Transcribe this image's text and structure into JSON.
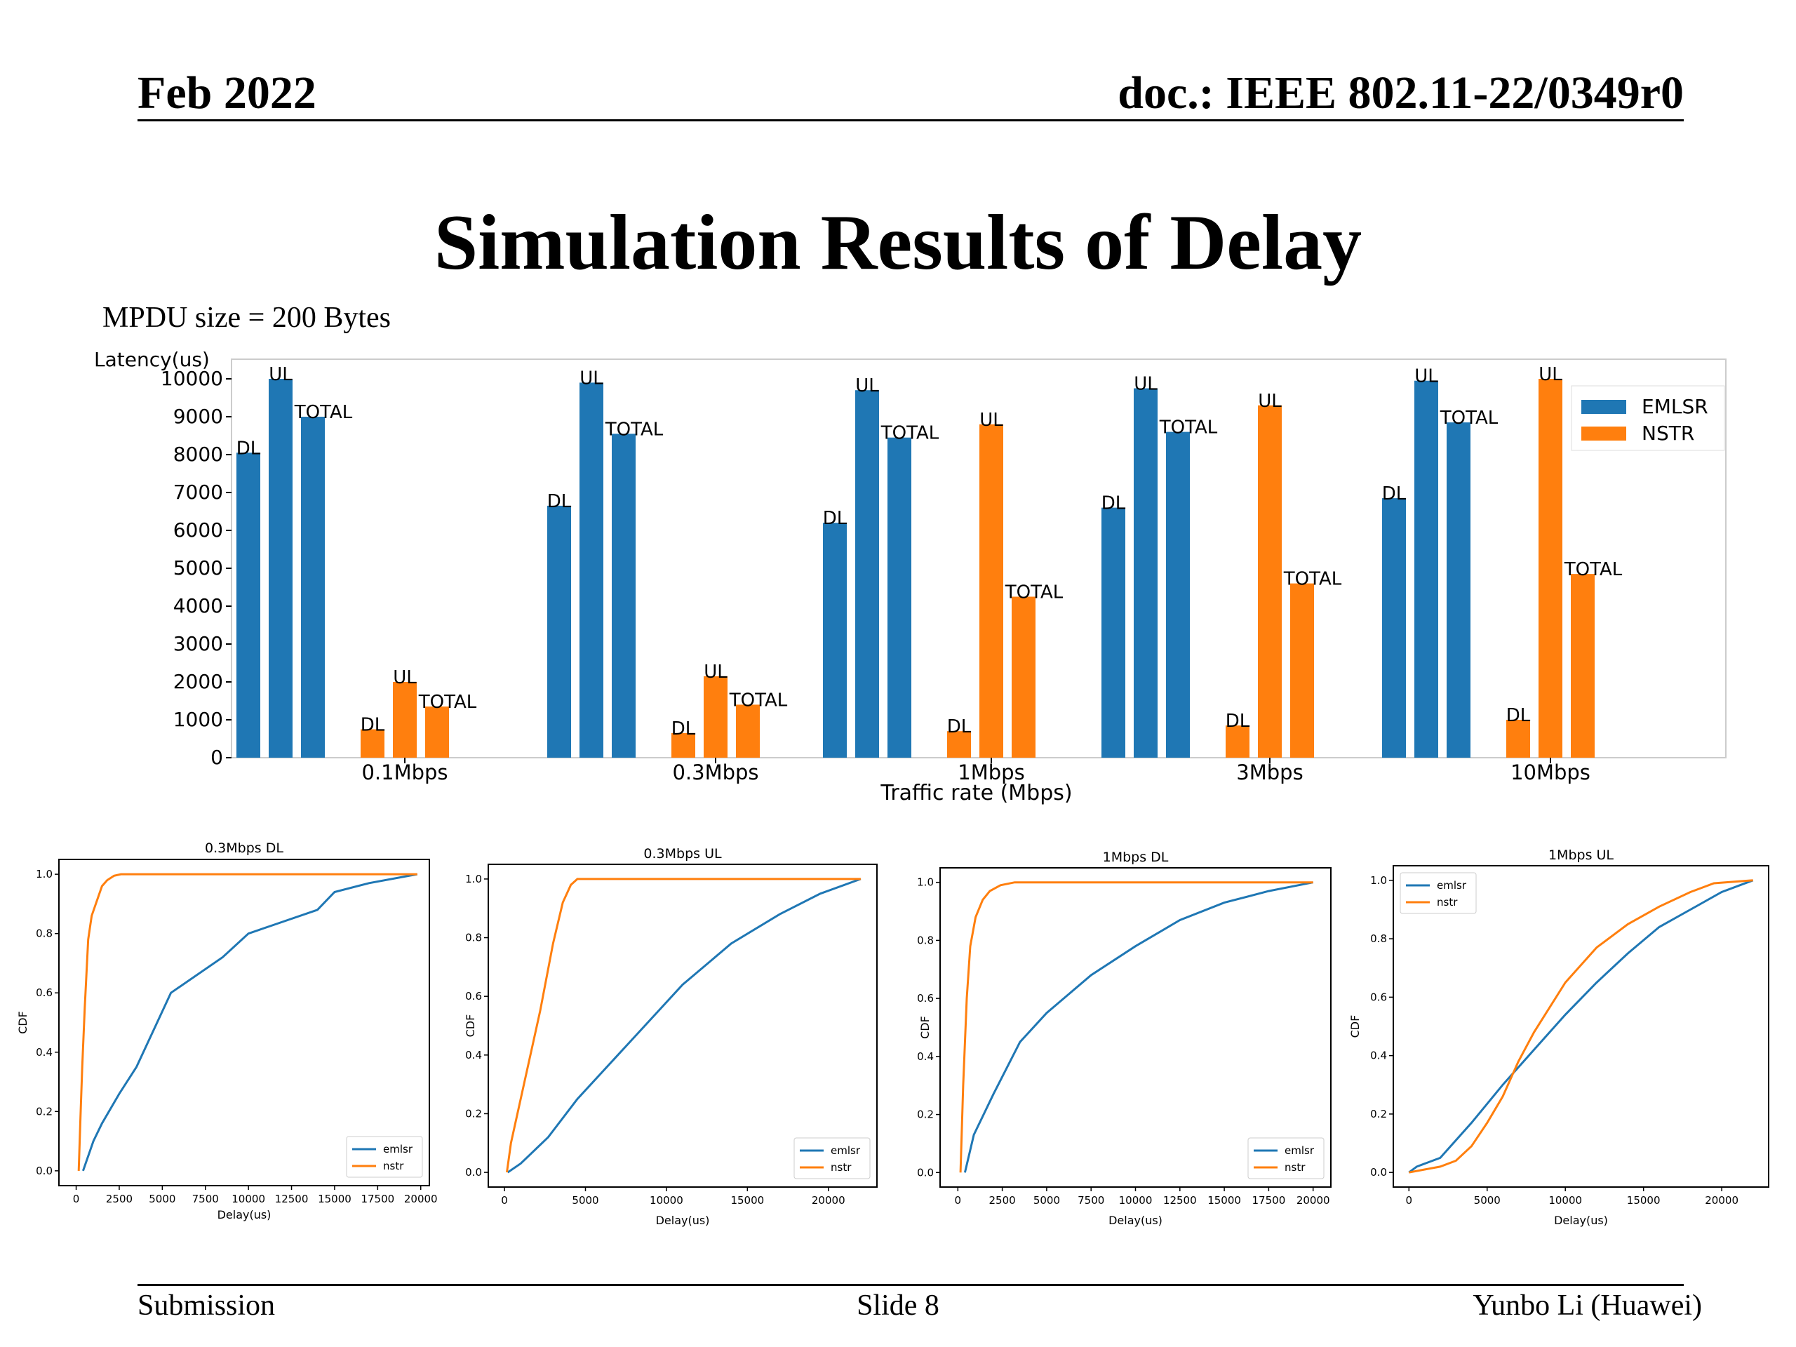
{
  "header": {
    "date": "Feb 2022",
    "doc": "doc.: IEEE 802.11-22/0349r0"
  },
  "slide_title": "Simulation Results of Delay",
  "note": "MPDU size = 200 Bytes",
  "footer": {
    "left": "Submission",
    "center": "Slide 8",
    "right": "Yunbo Li (Huawei)"
  },
  "colors": {
    "emlsr": "#1f77b4",
    "nstr": "#ff7f0e"
  },
  "chart_data": [
    {
      "type": "bar",
      "title": "",
      "xlabel": "Traffic rate (Mbps)",
      "ylabel": "Latency(us)",
      "ylim": [
        0,
        10000
      ],
      "yticks": [
        0,
        1000,
        2000,
        3000,
        4000,
        5000,
        6000,
        7000,
        8000,
        9000,
        10000
      ],
      "categories": [
        "0.1Mbps",
        "0.3Mbps",
        "1Mbps",
        "3Mbps",
        "10Mbps"
      ],
      "bar_labels": [
        "DL",
        "UL",
        "TOTAL"
      ],
      "legend": "top-right",
      "series": [
        {
          "name": "EMLSR",
          "color": "#1f77b4",
          "values": [
            [
              8050,
              10000,
              9000
            ],
            [
              6650,
              9900,
              8550
            ],
            [
              6200,
              9700,
              8450
            ],
            [
              6600,
              9750,
              8600
            ],
            [
              6850,
              9950,
              8850
            ]
          ]
        },
        {
          "name": "NSTR",
          "color": "#ff7f0e",
          "values": [
            [
              750,
              2000,
              1350
            ],
            [
              650,
              2150,
              1400
            ],
            [
              700,
              8800,
              4250
            ],
            [
              850,
              9300,
              4600
            ],
            [
              1000,
              10000,
              4850
            ]
          ]
        }
      ]
    },
    {
      "type": "line",
      "title": "0.3Mbps DL",
      "xlabel": "Delay(us)",
      "ylabel": "CDF",
      "xlim": [
        -1000,
        20500
      ],
      "ylim": [
        -0.05,
        1.05
      ],
      "xticks": [
        0,
        2500,
        5000,
        7500,
        10000,
        12500,
        15000,
        17500,
        20000
      ],
      "yticks": [
        0.0,
        0.2,
        0.4,
        0.6,
        0.8,
        1.0
      ],
      "legend": "lower-right",
      "series": [
        {
          "name": "emlsr",
          "color": "#1f77b4",
          "x": [
            400,
            1000,
            1500,
            2500,
            3500,
            5500,
            8500,
            10000,
            11500,
            14000,
            15000,
            17000,
            19800
          ],
          "y": [
            0.0,
            0.1,
            0.16,
            0.26,
            0.35,
            0.6,
            0.72,
            0.8,
            0.83,
            0.88,
            0.94,
            0.97,
            1.0
          ]
        },
        {
          "name": "nstr",
          "color": "#ff7f0e",
          "x": [
            150,
            250,
            350,
            500,
            700,
            900,
            1200,
            1500,
            1800,
            2200,
            2600,
            19800
          ],
          "y": [
            0.0,
            0.18,
            0.35,
            0.55,
            0.78,
            0.86,
            0.91,
            0.96,
            0.98,
            0.995,
            1.0,
            1.0
          ]
        }
      ]
    },
    {
      "type": "line",
      "title": "0.3Mbps UL",
      "xlabel": "Delay(us)",
      "ylabel": "CDF",
      "xlim": [
        -1000,
        23000
      ],
      "ylim": [
        -0.05,
        1.05
      ],
      "xticks": [
        0,
        5000,
        10000,
        15000,
        20000
      ],
      "yticks": [
        0.0,
        0.2,
        0.4,
        0.6,
        0.8,
        1.0
      ],
      "legend": "lower-right",
      "series": [
        {
          "name": "emlsr",
          "color": "#1f77b4",
          "x": [
            200,
            1000,
            2700,
            4500,
            7000,
            9500,
            11000,
            14000,
            17000,
            19500,
            22000
          ],
          "y": [
            0.0,
            0.03,
            0.12,
            0.25,
            0.4,
            0.55,
            0.64,
            0.78,
            0.88,
            0.95,
            1.0
          ]
        },
        {
          "name": "nstr",
          "color": "#ff7f0e",
          "x": [
            150,
            400,
            1200,
            2200,
            3000,
            3600,
            4100,
            4500,
            5200,
            22000
          ],
          "y": [
            0.0,
            0.1,
            0.3,
            0.55,
            0.78,
            0.92,
            0.98,
            1.0,
            1.0,
            1.0
          ]
        }
      ]
    },
    {
      "type": "line",
      "title": "1Mbps DL",
      "xlabel": "Delay(us)",
      "ylabel": "CDF",
      "xlim": [
        -1000,
        21000
      ],
      "ylim": [
        -0.05,
        1.05
      ],
      "xticks": [
        0,
        2500,
        5000,
        7500,
        10000,
        12500,
        15000,
        17500,
        20000
      ],
      "yticks": [
        0.0,
        0.2,
        0.4,
        0.6,
        0.8,
        1.0
      ],
      "legend": "lower-right",
      "series": [
        {
          "name": "emlsr",
          "color": "#1f77b4",
          "x": [
            400,
            900,
            2000,
            3500,
            5000,
            7500,
            10000,
            12500,
            15000,
            17500,
            20000
          ],
          "y": [
            0.0,
            0.13,
            0.27,
            0.45,
            0.55,
            0.68,
            0.78,
            0.87,
            0.93,
            0.97,
            1.0
          ]
        },
        {
          "name": "nstr",
          "color": "#ff7f0e",
          "x": [
            150,
            300,
            500,
            700,
            1000,
            1400,
            1800,
            2400,
            3200,
            20000
          ],
          "y": [
            0.0,
            0.3,
            0.6,
            0.78,
            0.88,
            0.94,
            0.97,
            0.99,
            1.0,
            1.0
          ]
        }
      ]
    },
    {
      "type": "line",
      "title": "1Mbps UL",
      "xlabel": "Delay(us)",
      "ylabel": "CDF",
      "xlim": [
        -1000,
        23000
      ],
      "ylim": [
        -0.05,
        1.05
      ],
      "xticks": [
        0,
        5000,
        10000,
        15000,
        20000
      ],
      "yticks": [
        0.0,
        0.2,
        0.4,
        0.6,
        0.8,
        1.0
      ],
      "legend": "upper-left",
      "series": [
        {
          "name": "emlsr",
          "color": "#1f77b4",
          "x": [
            0,
            500,
            1000,
            2000,
            4000,
            6000,
            8000,
            10000,
            12000,
            14000,
            16000,
            18000,
            20000,
            22000
          ],
          "y": [
            0.0,
            0.02,
            0.03,
            0.05,
            0.17,
            0.3,
            0.42,
            0.54,
            0.65,
            0.75,
            0.84,
            0.9,
            0.96,
            1.0
          ]
        },
        {
          "name": "nstr",
          "color": "#ff7f0e",
          "x": [
            0,
            1000,
            2000,
            3000,
            4000,
            5000,
            6000,
            7000,
            8000,
            10000,
            12000,
            14000,
            16000,
            18000,
            19500,
            22000
          ],
          "y": [
            0.0,
            0.01,
            0.02,
            0.04,
            0.09,
            0.17,
            0.26,
            0.38,
            0.48,
            0.65,
            0.77,
            0.85,
            0.91,
            0.96,
            0.99,
            1.0
          ]
        }
      ]
    }
  ]
}
